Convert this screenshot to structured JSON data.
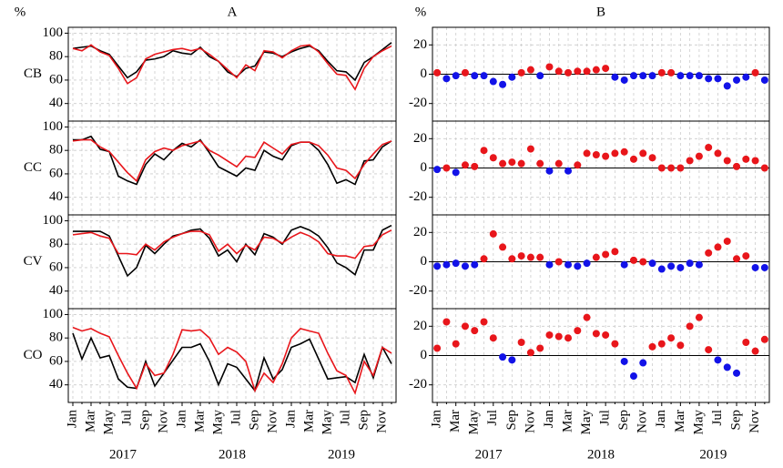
{
  "chart_data": [
    {
      "type": "line",
      "title": "A",
      "y_label": "%",
      "categories": [
        "Jan",
        null,
        "Mar",
        null,
        "May",
        null,
        "Jul",
        null,
        "Sep",
        null,
        "Nov",
        null,
        "Jan",
        null,
        "Mar",
        null,
        "May",
        null,
        "Jul",
        null,
        "Sep",
        null,
        "Nov",
        null,
        "Jan",
        null,
        "Mar",
        null,
        "May",
        null,
        "Jul",
        null,
        "Sep",
        null,
        "Nov",
        null
      ],
      "years": [
        "2017",
        "2018",
        "2019"
      ],
      "ylim": [
        25,
        105
      ],
      "yticks": [
        40,
        60,
        80,
        100
      ],
      "grid": true,
      "rows": [
        {
          "name": "CB",
          "series": [
            {
              "color": "#000000",
              "values": [
                87,
                88,
                89,
                85,
                82,
                72,
                62,
                67,
                77,
                78,
                80,
                85,
                83,
                82,
                88,
                80,
                76,
                67,
                63,
                70,
                72,
                84,
                83,
                80,
                84,
                87,
                89,
                85,
                76,
                68,
                67,
                60,
                75,
                80,
                86,
                92
              ]
            },
            {
              "color": "#e8161b",
              "values": [
                87,
                85,
                90,
                84,
                81,
                70,
                57,
                62,
                78,
                82,
                84,
                86,
                87,
                85,
                87,
                82,
                76,
                69,
                62,
                73,
                68,
                85,
                84,
                79,
                85,
                89,
                90,
                84,
                74,
                65,
                64,
                52,
                70,
                80,
                85,
                89
              ]
            }
          ]
        },
        {
          "name": "CC",
          "series": [
            {
              "color": "#000000",
              "values": [
                89,
                89,
                92,
                81,
                79,
                58,
                54,
                51,
                68,
                77,
                72,
                80,
                86,
                83,
                89,
                78,
                66,
                62,
                58,
                65,
                63,
                80,
                75,
                72,
                84,
                87,
                87,
                80,
                68,
                52,
                55,
                51,
                71,
                72,
                83,
                88
              ]
            },
            {
              "color": "#e8161b",
              "values": [
                88,
                89,
                89,
                83,
                79,
                70,
                61,
                54,
                72,
                79,
                82,
                80,
                84,
                86,
                88,
                80,
                76,
                71,
                66,
                75,
                74,
                87,
                82,
                77,
                85,
                87,
                87,
                84,
                76,
                65,
                63,
                56,
                68,
                77,
                85,
                88
              ]
            }
          ]
        },
        {
          "name": "CV",
          "series": [
            {
              "color": "#000000",
              "values": [
                91,
                91,
                91,
                91,
                87,
                70,
                53,
                60,
                79,
                72,
                80,
                87,
                89,
                92,
                93,
                85,
                70,
                75,
                65,
                80,
                71,
                89,
                86,
                80,
                92,
                95,
                92,
                87,
                77,
                64,
                60,
                54,
                75,
                75,
                92,
                96
              ]
            },
            {
              "color": "#e8161b",
              "values": [
                88,
                89,
                90,
                87,
                85,
                72,
                72,
                71,
                80,
                75,
                82,
                86,
                89,
                91,
                91,
                88,
                74,
                80,
                72,
                79,
                75,
                86,
                85,
                81,
                86,
                90,
                87,
                82,
                72,
                70,
                70,
                68,
                78,
                79,
                88,
                92
              ]
            }
          ]
        },
        {
          "name": "CO",
          "series": [
            {
              "color": "#000000",
              "values": [
                84,
                62,
                80,
                63,
                65,
                45,
                38,
                37,
                60,
                39,
                50,
                61,
                72,
                72,
                75,
                60,
                40,
                58,
                55,
                45,
                35,
                63,
                45,
                53,
                72,
                75,
                79,
                62,
                45,
                46,
                47,
                42,
                66,
                46,
                72,
                58
              ]
            },
            {
              "color": "#e8161b",
              "values": [
                89,
                86,
                88,
                84,
                81,
                65,
                50,
                37,
                58,
                48,
                50,
                66,
                87,
                86,
                87,
                80,
                66,
                72,
                68,
                60,
                35,
                50,
                42,
                58,
                80,
                88,
                86,
                84,
                67,
                52,
                48,
                33,
                60,
                48,
                72,
                67
              ]
            }
          ]
        }
      ]
    },
    {
      "type": "scatter",
      "title": "B",
      "y_label": "%",
      "categories": [
        "Jan",
        null,
        "Mar",
        null,
        "May",
        null,
        "Jul",
        null,
        "Sep",
        null,
        "Nov",
        null,
        "Jan",
        null,
        "Mar",
        null,
        "May",
        null,
        "Jul",
        null,
        "Sep",
        null,
        "Nov",
        null,
        "Jan",
        null,
        "Mar",
        null,
        "May",
        null,
        "Jul",
        null,
        "Sep",
        null,
        "Nov",
        null
      ],
      "years": [
        "2017",
        "2018",
        "2019"
      ],
      "ylim": [
        -32,
        32
      ],
      "yticks": [
        -20,
        0,
        20
      ],
      "grid": true,
      "positive_color": "#e8161b",
      "negative_color": "#1212e8",
      "rows": [
        {
          "values": [
            1,
            -3,
            -1,
            1,
            -1,
            -1,
            -5,
            -7,
            -2,
            1,
            3,
            -1,
            5,
            2,
            1,
            2,
            2,
            3,
            4,
            -2,
            -4,
            -1,
            -1,
            -1,
            1,
            1,
            -1,
            -1,
            -1,
            -3,
            -3,
            -8,
            -4,
            -2,
            1,
            -4
          ]
        },
        {
          "values": [
            -1,
            0,
            -3,
            2,
            1,
            12,
            7,
            3,
            4,
            3,
            13,
            3,
            -2,
            3,
            -2,
            2,
            10,
            9,
            8,
            10,
            11,
            6,
            10,
            7,
            0,
            0,
            0,
            5,
            8,
            14,
            10,
            5,
            1,
            6,
            5,
            0
          ]
        },
        {
          "values": [
            -3,
            -2,
            -1,
            -3,
            -2,
            2,
            19,
            10,
            2,
            4,
            3,
            3,
            -2,
            0,
            -2,
            -3,
            -1,
            3,
            5,
            7,
            -2,
            1,
            0,
            -1,
            -5,
            -3,
            -4,
            -1,
            -2,
            6,
            10,
            14,
            2,
            4,
            -4,
            -4
          ]
        },
        {
          "values": [
            5,
            23,
            8,
            20,
            17,
            23,
            12,
            -1,
            -3,
            9,
            2,
            5,
            14,
            13,
            12,
            17,
            26,
            15,
            14,
            8,
            -4,
            -14,
            -5,
            6,
            8,
            12,
            7,
            20,
            26,
            4,
            -3,
            -8,
            -12,
            9,
            3,
            11
          ]
        }
      ]
    }
  ]
}
